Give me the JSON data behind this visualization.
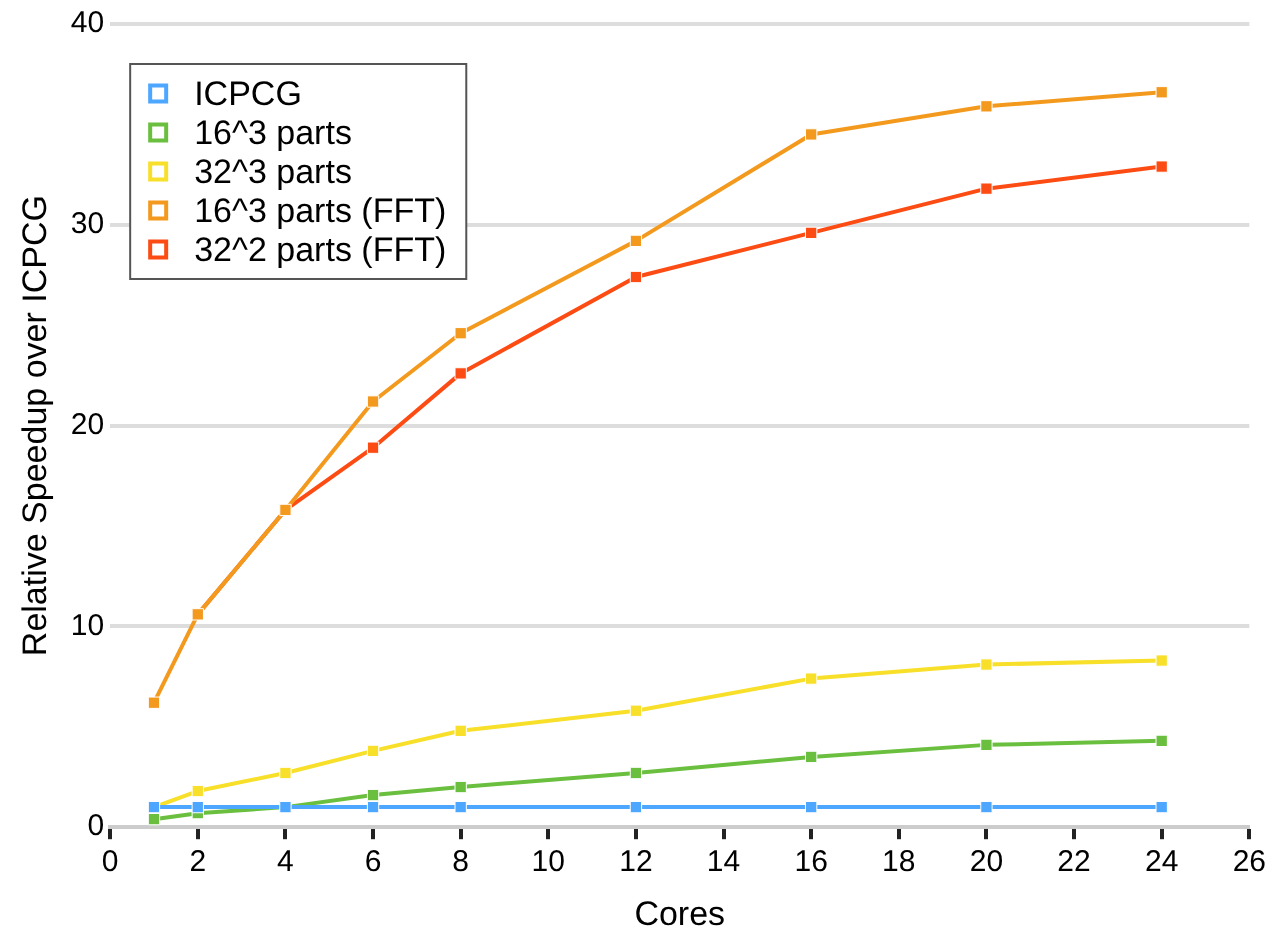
{
  "chart_data": {
    "type": "line",
    "xlabel": "Cores",
    "ylabel": "Relative Speedup over ICPCG",
    "x": [
      1,
      2,
      4,
      6,
      8,
      12,
      16,
      20,
      24
    ],
    "xlim": [
      0,
      26
    ],
    "xticks": [
      0,
      2,
      4,
      6,
      8,
      10,
      12,
      14,
      16,
      18,
      20,
      22,
      24,
      26
    ],
    "ylim": [
      0,
      40
    ],
    "yticks": [
      0,
      10,
      20,
      30,
      40
    ],
    "grid": "y",
    "legend": "top left",
    "marker": "square",
    "line_style": "solid",
    "series": [
      {
        "name": "ICPCG",
        "color": "#4da6ff",
        "values": [
          1,
          1,
          1,
          1,
          1,
          1,
          1,
          1,
          1
        ]
      },
      {
        "name": "16^3 parts",
        "color": "#6abf3f",
        "values": [
          0.4,
          0.7,
          1.0,
          1.6,
          2.0,
          2.7,
          3.5,
          4.1,
          4.3
        ]
      },
      {
        "name": "32^3 parts",
        "color": "#f8df2a",
        "values": [
          1.0,
          1.8,
          2.7,
          3.8,
          4.8,
          5.8,
          7.4,
          8.1,
          8.3
        ]
      },
      {
        "name": "16^3 parts (FFT)",
        "color": "#f39a1e",
        "values": [
          6.2,
          10.6,
          15.8,
          21.2,
          24.6,
          29.2,
          34.5,
          35.9,
          36.6
        ]
      },
      {
        "name": "32^2 parts (FFT)",
        "color": "#fc4c14",
        "values": [
          null,
          10.6,
          15.8,
          18.9,
          22.6,
          27.4,
          29.6,
          31.8,
          32.9
        ]
      }
    ]
  }
}
